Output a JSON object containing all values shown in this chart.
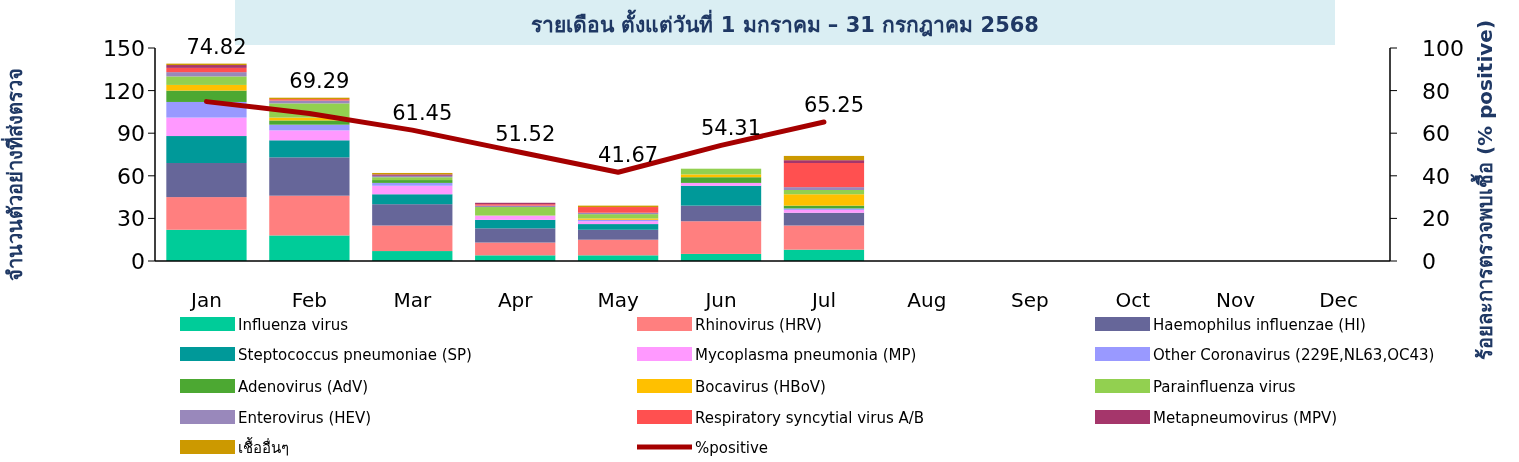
{
  "chart_data": {
    "type": "bar",
    "stacked": true,
    "title": "รายเดือน ตั้งแต่วันที่ 1 มกราคม – 31 กรกฎาคม 2568",
    "ylabel": "จำนวนตัวอย่างที่ส่งตรวจ",
    "y2label": "ร้อยละการตรวจพบเชื้อ (% positive)",
    "categories": [
      "Jan",
      "Feb",
      "Mar",
      "Apr",
      "May",
      "Jun",
      "Jul",
      "Aug",
      "Sep",
      "Oct",
      "Nov",
      "Dec"
    ],
    "ylim": [
      0,
      150
    ],
    "yticks": [
      0,
      30,
      60,
      90,
      120,
      150
    ],
    "y2lim": [
      0,
      100
    ],
    "y2ticks": [
      0,
      20,
      40,
      60,
      80,
      100
    ],
    "legend": "bottom",
    "series": [
      {
        "name": "Influenza virus",
        "color": "#00cc99",
        "values": [
          22,
          18,
          7,
          4,
          4,
          5,
          8,
          null,
          null,
          null,
          null,
          null
        ]
      },
      {
        "name": "Rhinovirus (HRV)",
        "color": "#ff7f7f",
        "values": [
          23,
          28,
          18,
          9,
          11,
          23,
          17,
          null,
          null,
          null,
          null,
          null
        ]
      },
      {
        "name": "Haemophilus influenzae (HI)",
        "color": "#666699",
        "values": [
          24,
          27,
          15,
          10,
          7,
          11,
          9,
          null,
          null,
          null,
          null,
          null
        ]
      },
      {
        "name": "Steptococcus pneumoniae (SP)",
        "color": "#009999",
        "values": [
          19,
          12,
          7,
          6,
          4,
          14,
          0,
          null,
          null,
          null,
          null,
          null
        ]
      },
      {
        "name": "Mycoplasma pneumonia (MP)",
        "color": "#ff99ff",
        "values": [
          13,
          7,
          6,
          3,
          2,
          2,
          2,
          null,
          null,
          null,
          null,
          null
        ]
      },
      {
        "name": "Other Coronavirus (229E,NL63,OC43)",
        "color": "#9999ff",
        "values": [
          11,
          4,
          2,
          0,
          1,
          0,
          1,
          null,
          null,
          null,
          null,
          null
        ]
      },
      {
        "name": "Adenovirus (AdV)",
        "color": "#4ca832",
        "values": [
          8,
          3,
          2,
          0,
          0,
          4,
          2,
          null,
          null,
          null,
          null,
          null
        ]
      },
      {
        "name": "Bocavirus (HBoV)",
        "color": "#ffc000",
        "values": [
          4,
          2,
          0,
          0,
          1,
          2,
          8,
          null,
          null,
          null,
          null,
          null
        ]
      },
      {
        "name": "Parainfluenza virus",
        "color": "#92d050",
        "values": [
          6,
          10,
          2,
          6,
          3,
          4,
          3,
          null,
          null,
          null,
          null,
          null
        ]
      },
      {
        "name": "Enterovirus (HEV)",
        "color": "#9988bb",
        "values": [
          3,
          2,
          1,
          1,
          1,
          0,
          2,
          null,
          null,
          null,
          null,
          null
        ]
      },
      {
        "name": "Respiratory syncytial virus A/B",
        "color": "#ff5050",
        "values": [
          3,
          1,
          0,
          1,
          4,
          0,
          17,
          null,
          null,
          null,
          null,
          null
        ]
      },
      {
        "name": "Metapneumovirus (MPV)",
        "color": "#a5366b",
        "values": [
          2,
          null,
          1,
          1,
          0,
          0,
          2,
          null,
          null,
          null,
          null,
          null
        ]
      },
      {
        "name": "เชื้ออื่นๆ",
        "color": "#cc9900",
        "values": [
          1,
          1,
          1,
          0,
          1,
          0,
          3,
          null,
          null,
          null,
          null,
          null
        ]
      },
      {
        "name": "%positive",
        "type": "line",
        "axis": "y2",
        "color": "#a50000",
        "values": [
          74.82,
          69.29,
          61.45,
          51.52,
          41.67,
          54.31,
          65.25,
          null,
          null,
          null,
          null,
          null
        ],
        "value_labels": [
          "74.82",
          "69.29",
          "61.45",
          "51.52",
          "41.67",
          "54.31",
          "65.25",
          null,
          null,
          null,
          null,
          null
        ]
      }
    ]
  }
}
